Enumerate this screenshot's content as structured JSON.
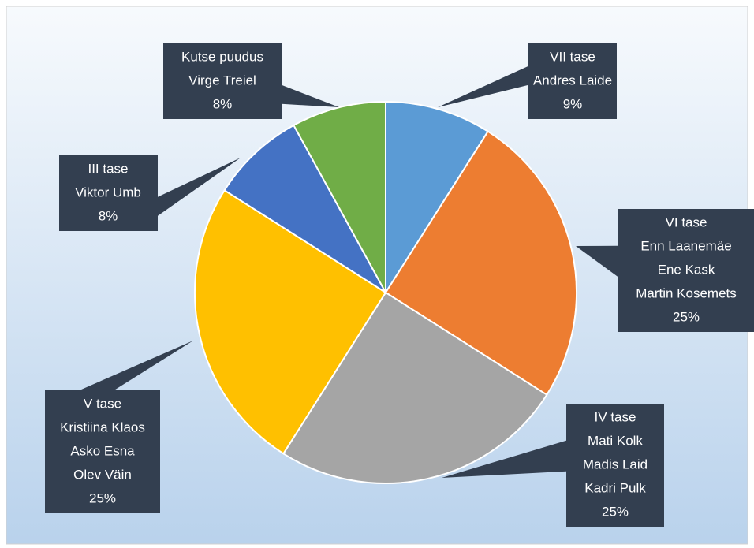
{
  "chart_data": {
    "type": "pie",
    "categories": [
      "VII tase",
      "VI tase",
      "IV tase",
      "V tase",
      "III tase",
      "Kutse puudus"
    ],
    "names": [
      [
        "Andres Laide"
      ],
      [
        "Enn Laanemäe",
        "Ene Kask",
        "Martin Kosemets"
      ],
      [
        "Mati Kolk",
        "Madis Laid",
        "Kadri Pulk"
      ],
      [
        "Kristiina Klaos",
        "Asko Esna",
        "Olev Väin"
      ],
      [
        "Viktor Umb"
      ],
      [
        "Virge Treiel"
      ]
    ],
    "values": [
      9,
      25,
      25,
      25,
      8,
      8
    ],
    "value_labels": [
      "9%",
      "25%",
      "25%",
      "25%",
      "8%",
      "8%"
    ],
    "colors": [
      "#5b9bd5",
      "#ed7d31",
      "#a5a5a5",
      "#ffc000",
      "#4472c4",
      "#70ad47"
    ]
  }
}
